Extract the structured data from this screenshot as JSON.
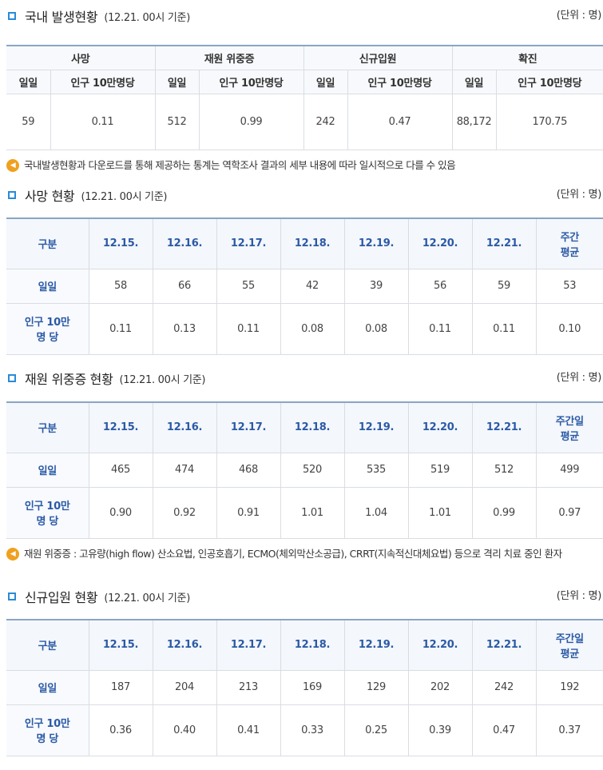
{
  "summary": {
    "title": "국내 발생현황",
    "subtitle": "(12.21. 00시 기준)",
    "unit": "(단위 : 명)",
    "groups": [
      "사망",
      "재원 위중증",
      "신규입원",
      "확진"
    ],
    "col_daily": "일일",
    "col_per100k": "인구 10만명당",
    "values": [
      "59",
      "0.11",
      "512",
      "0.99",
      "242",
      "0.47",
      "88,172",
      "170.75"
    ],
    "note": "국내발생현황과 다운로드를 통해 제공하는 통계는 역학조사 결과의 세부 내용에 따라 일시적으로 다를 수 있음"
  },
  "death": {
    "title": "사망 현황",
    "subtitle": "(12.21. 00시 기준)",
    "unit": "(단위 : 명)",
    "header": "구분",
    "dates": [
      "12.15.",
      "12.16.",
      "12.17.",
      "12.18.",
      "12.19.",
      "12.20.",
      "12.21."
    ],
    "avg_line1": "주간",
    "avg_line2": "평균",
    "row1_label": "일일",
    "row1": [
      "58",
      "66",
      "55",
      "42",
      "39",
      "56",
      "59",
      "53"
    ],
    "row2_label1": "인구 10만",
    "row2_label2": "명 당",
    "row2": [
      "0.11",
      "0.13",
      "0.11",
      "0.08",
      "0.08",
      "0.11",
      "0.11",
      "0.10"
    ]
  },
  "severe": {
    "title": "재원 위중증 현황",
    "subtitle": "(12.21. 00시 기준)",
    "unit": "(단위 : 명)",
    "header": "구분",
    "dates": [
      "12.15.",
      "12.16.",
      "12.17.",
      "12.18.",
      "12.19.",
      "12.20.",
      "12.21."
    ],
    "avg_line1": "주간일",
    "avg_line2": "평균",
    "row1_label": "일일",
    "row1": [
      "465",
      "474",
      "468",
      "520",
      "535",
      "519",
      "512",
      "499"
    ],
    "row2_label1": "인구 10만",
    "row2_label2": "명 당",
    "row2": [
      "0.90",
      "0.92",
      "0.91",
      "1.01",
      "1.04",
      "1.01",
      "0.99",
      "0.97"
    ],
    "note": "재원 위중증 : 고유량(high flow) 산소요법, 인공호흡기, ECMO(체외막산소공급), CRRT(지속적신대체요법) 등으로 격리 치료 중인 환자"
  },
  "admission": {
    "title": "신규입원 현황",
    "subtitle": "(12.21. 00시 기준)",
    "unit": "(단위 : 명)",
    "header": "구분",
    "dates": [
      "12.15.",
      "12.16.",
      "12.17.",
      "12.18.",
      "12.19.",
      "12.20.",
      "12.21."
    ],
    "avg_line1": "주간일",
    "avg_line2": "평균",
    "row1_label": "일일",
    "row1": [
      "187",
      "204",
      "213",
      "169",
      "129",
      "202",
      "242",
      "192"
    ],
    "row2_label1": "인구 10만",
    "row2_label2": "명 당",
    "row2": [
      "0.36",
      "0.40",
      "0.41",
      "0.33",
      "0.25",
      "0.39",
      "0.47",
      "0.37"
    ]
  },
  "colors": {
    "accent": "#2a8bd6",
    "header_text": "#2b5aa6",
    "note_icon": "#f0a020"
  },
  "icons": {
    "section_marker": "square-bullet-icon",
    "note": "speaker-icon"
  }
}
